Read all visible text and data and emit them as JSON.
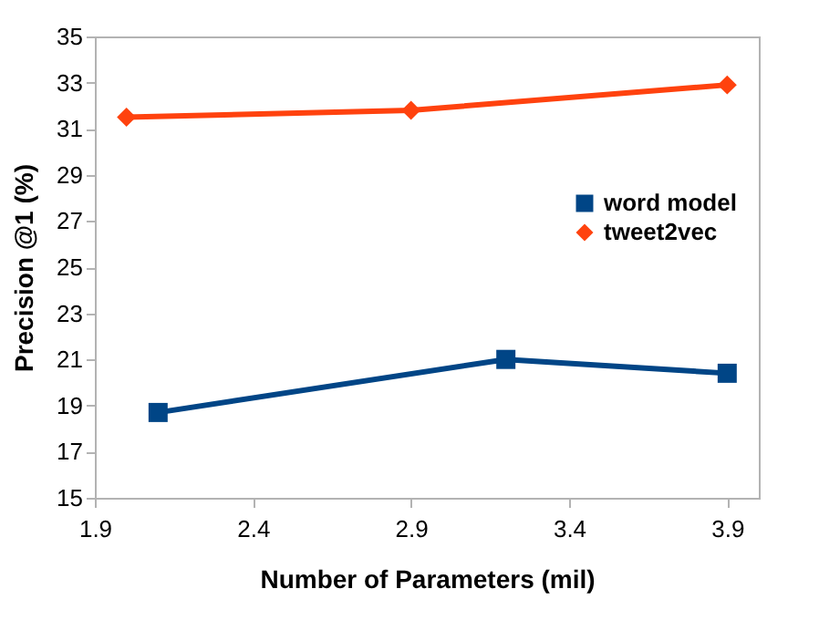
{
  "chart_data": {
    "type": "line",
    "xlabel": "Number of Parameters (mil)",
    "ylabel": "Precision @1 (%)",
    "xlim": [
      1.9,
      4.0
    ],
    "xticks": [
      1.9,
      2.4,
      2.9,
      3.4,
      3.9
    ],
    "ylim": [
      15,
      35
    ],
    "yticks": [
      15,
      17,
      19,
      21,
      23,
      25,
      27,
      29,
      31,
      33,
      35
    ],
    "grid": false,
    "legend": "right",
    "series": [
      {
        "name": "word model",
        "color": "#004586",
        "marker": "square",
        "x": [
          2.1,
          3.2,
          3.9
        ],
        "values": [
          18.7,
          21.0,
          20.4
        ]
      },
      {
        "name": "tweet2vec",
        "color": "#ff420e",
        "marker": "diamond",
        "x": [
          2.0,
          2.9,
          3.9
        ],
        "values": [
          31.5,
          31.8,
          32.9
        ]
      }
    ]
  }
}
